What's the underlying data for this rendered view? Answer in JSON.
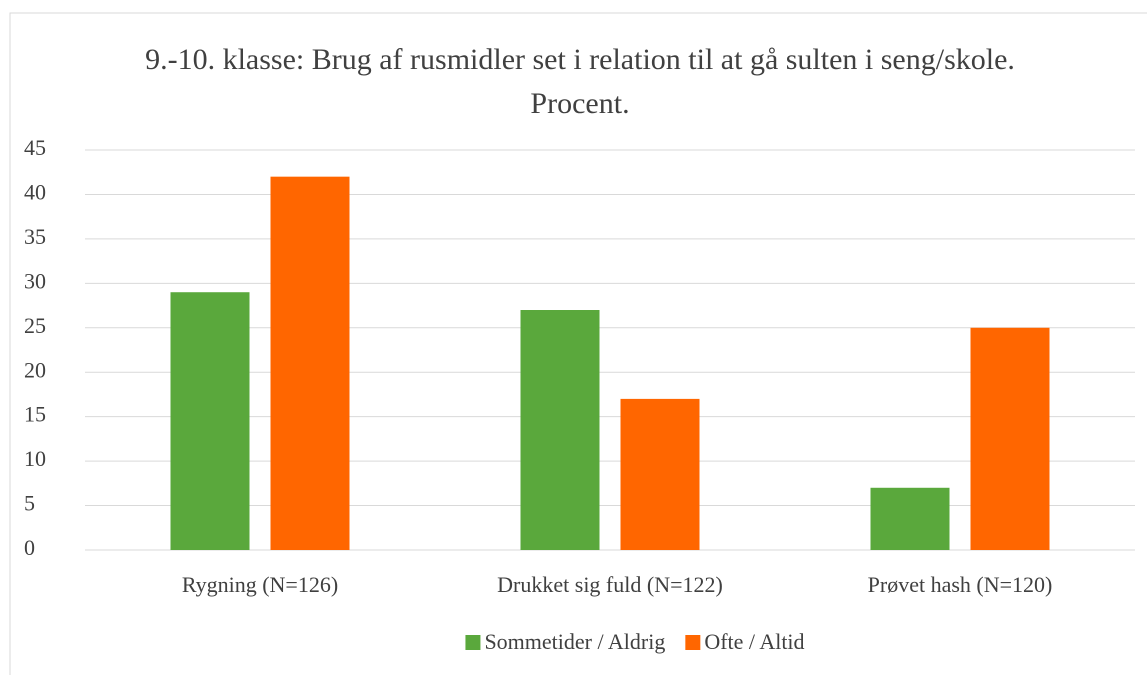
{
  "chart_data": {
    "type": "bar",
    "title": "9.-10. klasse: Brug af rusmidler set i relation til at gå sulten i seng/skole. Procent.",
    "categories": [
      "Rygning (N=126)",
      "Drukket sig fuld (N=122)",
      "Prøvet hash (N=120)"
    ],
    "series": [
      {
        "name": "Sommetider / Aldrig",
        "color": "#5aa83c",
        "values": [
          29,
          27,
          7
        ]
      },
      {
        "name": "Ofte / Altid",
        "color": "#ff6600",
        "values": [
          42,
          17,
          25
        ]
      }
    ],
    "ylim": [
      0,
      45
    ],
    "yticks": [
      0,
      5,
      10,
      15,
      20,
      25,
      30,
      35,
      40,
      45
    ],
    "grid": true,
    "legend": "bottom"
  }
}
